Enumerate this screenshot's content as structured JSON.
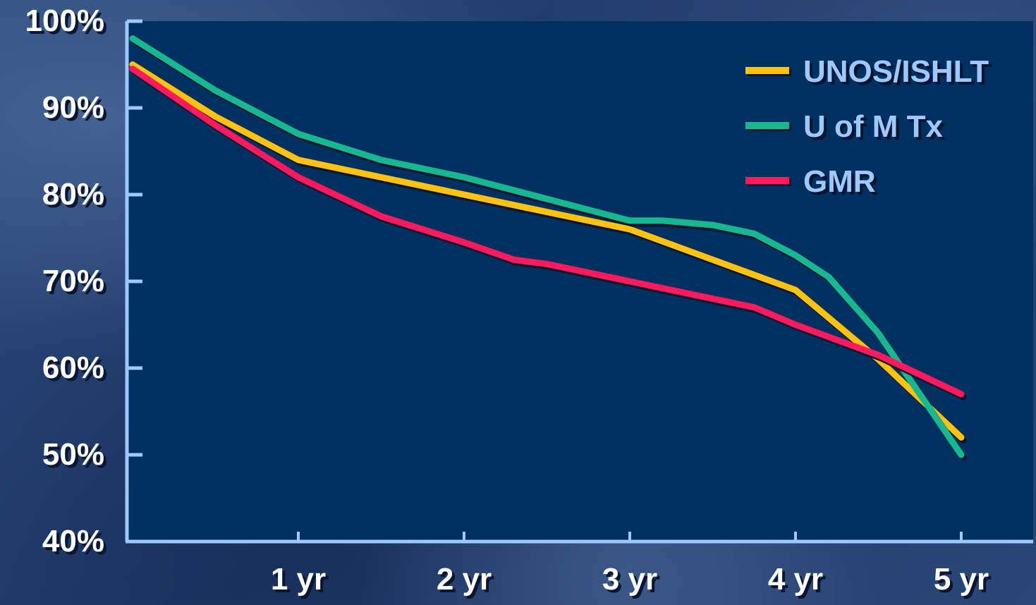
{
  "chart_data": {
    "type": "line",
    "title": "",
    "xlabel": "",
    "ylabel": "",
    "x": [
      0,
      0.5,
      1,
      1.5,
      2,
      2.5,
      3,
      3.5,
      4,
      4.5,
      5
    ],
    "x_tick_labels": [
      {
        "x": 1,
        "label": "1 yr"
      },
      {
        "x": 2,
        "label": "2 yr"
      },
      {
        "x": 3,
        "label": "3 yr"
      },
      {
        "x": 4,
        "label": "4 yr"
      },
      {
        "x": 5,
        "label": "5 yr"
      }
    ],
    "y_tick_labels": [
      {
        "y": 40,
        "label": "40%"
      },
      {
        "y": 50,
        "label": "50%"
      },
      {
        "y": 60,
        "label": "60%"
      },
      {
        "y": 70,
        "label": "70%"
      },
      {
        "y": 80,
        "label": "80%"
      },
      {
        "y": 90,
        "label": "90%"
      },
      {
        "y": 100,
        "label": "100%"
      }
    ],
    "xlim": [
      0,
      5.4
    ],
    "ylim": [
      40,
      100
    ],
    "grid": false,
    "legend_position": "top-right",
    "series": [
      {
        "name": "UNOS/ISHLT",
        "color": "#ffc20e",
        "points": [
          [
            0,
            95
          ],
          [
            0.5,
            89
          ],
          [
            1,
            84
          ],
          [
            1.5,
            82
          ],
          [
            2,
            80
          ],
          [
            2.5,
            78
          ],
          [
            3,
            76
          ],
          [
            3.5,
            72.5
          ],
          [
            4,
            69
          ],
          [
            4.5,
            61
          ],
          [
            5,
            52
          ]
        ]
      },
      {
        "name": "U of M Tx",
        "color": "#17b890",
        "points": [
          [
            0,
            98
          ],
          [
            0.5,
            92
          ],
          [
            1,
            87
          ],
          [
            1.5,
            84
          ],
          [
            2,
            82
          ],
          [
            2.5,
            79.5
          ],
          [
            3,
            77
          ],
          [
            3.2,
            77
          ],
          [
            3.5,
            76.5
          ],
          [
            3.75,
            75.5
          ],
          [
            4,
            73
          ],
          [
            4.2,
            70.5
          ],
          [
            4.5,
            64
          ],
          [
            5,
            50
          ]
        ]
      },
      {
        "name": "GMR",
        "color": "#ff1a5e",
        "points": [
          [
            0,
            94.5
          ],
          [
            0.5,
            88
          ],
          [
            1,
            82
          ],
          [
            1.5,
            77.5
          ],
          [
            2,
            74.5
          ],
          [
            2.3,
            72.5
          ],
          [
            2.5,
            72
          ],
          [
            3,
            70
          ],
          [
            3.5,
            68
          ],
          [
            3.75,
            67
          ],
          [
            4,
            65
          ],
          [
            4.5,
            61.5
          ],
          [
            5,
            57
          ]
        ]
      }
    ]
  }
}
